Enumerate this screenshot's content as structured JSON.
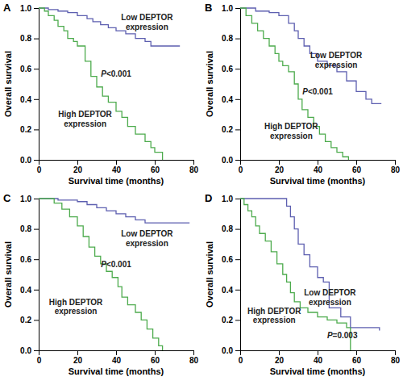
{
  "chart_data": [
    {
      "type": "line",
      "title": "A",
      "x_label": "Survival time (months)",
      "y_label": "Overall survival",
      "xlim": [
        0,
        80
      ],
      "xticks": [
        0,
        20,
        40,
        60,
        80
      ],
      "ylim": [
        0,
        1
      ],
      "yticks": [
        {
          "value": 0,
          "label": "0.0"
        },
        0.2,
        0.4,
        0.6,
        0.8,
        {
          "value": 1,
          "label": "1.0"
        }
      ],
      "line_style": "step",
      "annotations": [
        "P<0.001"
      ],
      "series": [
        {
          "name": "Low DEPTOR expression",
          "color": "#5d5fb0",
          "x": [
            0,
            5,
            10,
            15,
            20,
            25,
            28,
            32,
            36,
            40,
            45,
            50,
            55,
            58,
            73
          ],
          "values": [
            1.0,
            0.99,
            0.98,
            0.97,
            0.95,
            0.93,
            0.91,
            0.89,
            0.87,
            0.85,
            0.83,
            0.8,
            0.78,
            0.75,
            0.75
          ]
        },
        {
          "name": "High DEPTOR expression",
          "color": "#4dab4d",
          "x": [
            0,
            3,
            5,
            8,
            10,
            13,
            15,
            18,
            20,
            24,
            27,
            30,
            33,
            36,
            40,
            43,
            46,
            50,
            55,
            58,
            60,
            64
          ],
          "values": [
            1.0,
            0.98,
            0.95,
            0.92,
            0.88,
            0.85,
            0.8,
            0.78,
            0.75,
            0.65,
            0.55,
            0.48,
            0.42,
            0.38,
            0.32,
            0.28,
            0.22,
            0.17,
            0.12,
            0.08,
            0.05,
            0.0
          ]
        }
      ]
    },
    {
      "type": "line",
      "title": "B",
      "x_label": "Survival time (months)",
      "y_label": "Overall survival",
      "xlim": [
        0,
        80
      ],
      "xticks": [
        0,
        20,
        40,
        60,
        80
      ],
      "ylim": [
        0,
        1
      ],
      "yticks": [
        {
          "value": 0,
          "label": "0.0"
        },
        0.2,
        0.4,
        0.6,
        0.8,
        {
          "value": 1,
          "label": "1.0"
        }
      ],
      "line_style": "step",
      "annotations": [
        "P<0.001"
      ],
      "series": [
        {
          "name": "Low DEPTOR expression",
          "color": "#5d5fb0",
          "x": [
            0,
            8,
            15,
            20,
            25,
            28,
            30,
            33,
            36,
            40,
            45,
            50,
            55,
            60,
            65,
            68,
            73
          ],
          "values": [
            1.0,
            0.98,
            0.97,
            0.95,
            0.9,
            0.85,
            0.8,
            0.75,
            0.7,
            0.65,
            0.62,
            0.58,
            0.52,
            0.45,
            0.4,
            0.37,
            0.37
          ]
        },
        {
          "name": "High DEPTOR expression",
          "color": "#4dab4d",
          "x": [
            0,
            3,
            6,
            9,
            12,
            15,
            18,
            20,
            22,
            25,
            28,
            30,
            32,
            35,
            38,
            41,
            44,
            47,
            50,
            53,
            56
          ],
          "values": [
            1.0,
            0.95,
            0.9,
            0.85,
            0.8,
            0.75,
            0.7,
            0.65,
            0.62,
            0.58,
            0.5,
            0.4,
            0.33,
            0.28,
            0.22,
            0.17,
            0.12,
            0.08,
            0.05,
            0.02,
            0.0
          ]
        }
      ]
    },
    {
      "type": "line",
      "title": "C",
      "x_label": "Survival time (months)",
      "y_label": "Overall survival",
      "xlim": [
        0,
        80
      ],
      "xticks": [
        0,
        20,
        40,
        60,
        80
      ],
      "ylim": [
        0,
        1
      ],
      "yticks": [
        {
          "value": 0,
          "label": "0.0"
        },
        0.2,
        0.4,
        0.6,
        0.8,
        {
          "value": 1,
          "label": "1.0"
        }
      ],
      "line_style": "step",
      "annotations": [
        "P<0.001"
      ],
      "series": [
        {
          "name": "Low DEPTOR expression",
          "color": "#5d5fb0",
          "x": [
            0,
            10,
            20,
            25,
            30,
            35,
            40,
            45,
            50,
            55,
            78
          ],
          "values": [
            1.0,
            0.99,
            0.98,
            0.96,
            0.94,
            0.92,
            0.9,
            0.88,
            0.86,
            0.84,
            0.84
          ]
        },
        {
          "name": "High DEPTOR expression",
          "color": "#4dab4d",
          "x": [
            0,
            8,
            12,
            16,
            20,
            23,
            26,
            29,
            32,
            35,
            38,
            41,
            43,
            46,
            50,
            53,
            56,
            59,
            62,
            64
          ],
          "values": [
            1.0,
            0.97,
            0.93,
            0.88,
            0.82,
            0.75,
            0.68,
            0.62,
            0.57,
            0.52,
            0.48,
            0.42,
            0.35,
            0.3,
            0.25,
            0.2,
            0.14,
            0.08,
            0.03,
            0.0
          ]
        }
      ]
    },
    {
      "type": "line",
      "title": "D",
      "x_label": "Survival time (months)",
      "y_label": "Overall survival",
      "xlim": [
        0,
        80
      ],
      "xticks": [
        0,
        20,
        40,
        60,
        80
      ],
      "ylim": [
        0,
        1
      ],
      "yticks": [
        {
          "value": 0,
          "label": "0.0"
        },
        0.2,
        0.4,
        0.6,
        0.8,
        {
          "value": 1,
          "label": "1.0"
        }
      ],
      "line_style": "step",
      "annotations": [
        "P=0.003"
      ],
      "series": [
        {
          "name": "Low DEPTOR expression",
          "color": "#5d5fb0",
          "x": [
            0,
            24,
            26,
            28,
            30,
            33,
            36,
            40,
            43,
            46,
            52,
            57,
            72
          ],
          "values": [
            1.0,
            0.95,
            0.88,
            0.8,
            0.7,
            0.63,
            0.55,
            0.48,
            0.45,
            0.28,
            0.22,
            0.15,
            0.13
          ]
        },
        {
          "name": "High DEPTOR expression",
          "color": "#4dab4d",
          "x": [
            0,
            2,
            4,
            6,
            8,
            10,
            13,
            16,
            19,
            22,
            24,
            26,
            28,
            31,
            35,
            40,
            45,
            50,
            55,
            57
          ],
          "values": [
            1.0,
            0.96,
            0.92,
            0.88,
            0.82,
            0.77,
            0.72,
            0.65,
            0.57,
            0.5,
            0.45,
            0.38,
            0.32,
            0.28,
            0.25,
            0.22,
            0.2,
            0.18,
            0.15,
            0.0
          ]
        }
      ]
    }
  ]
}
